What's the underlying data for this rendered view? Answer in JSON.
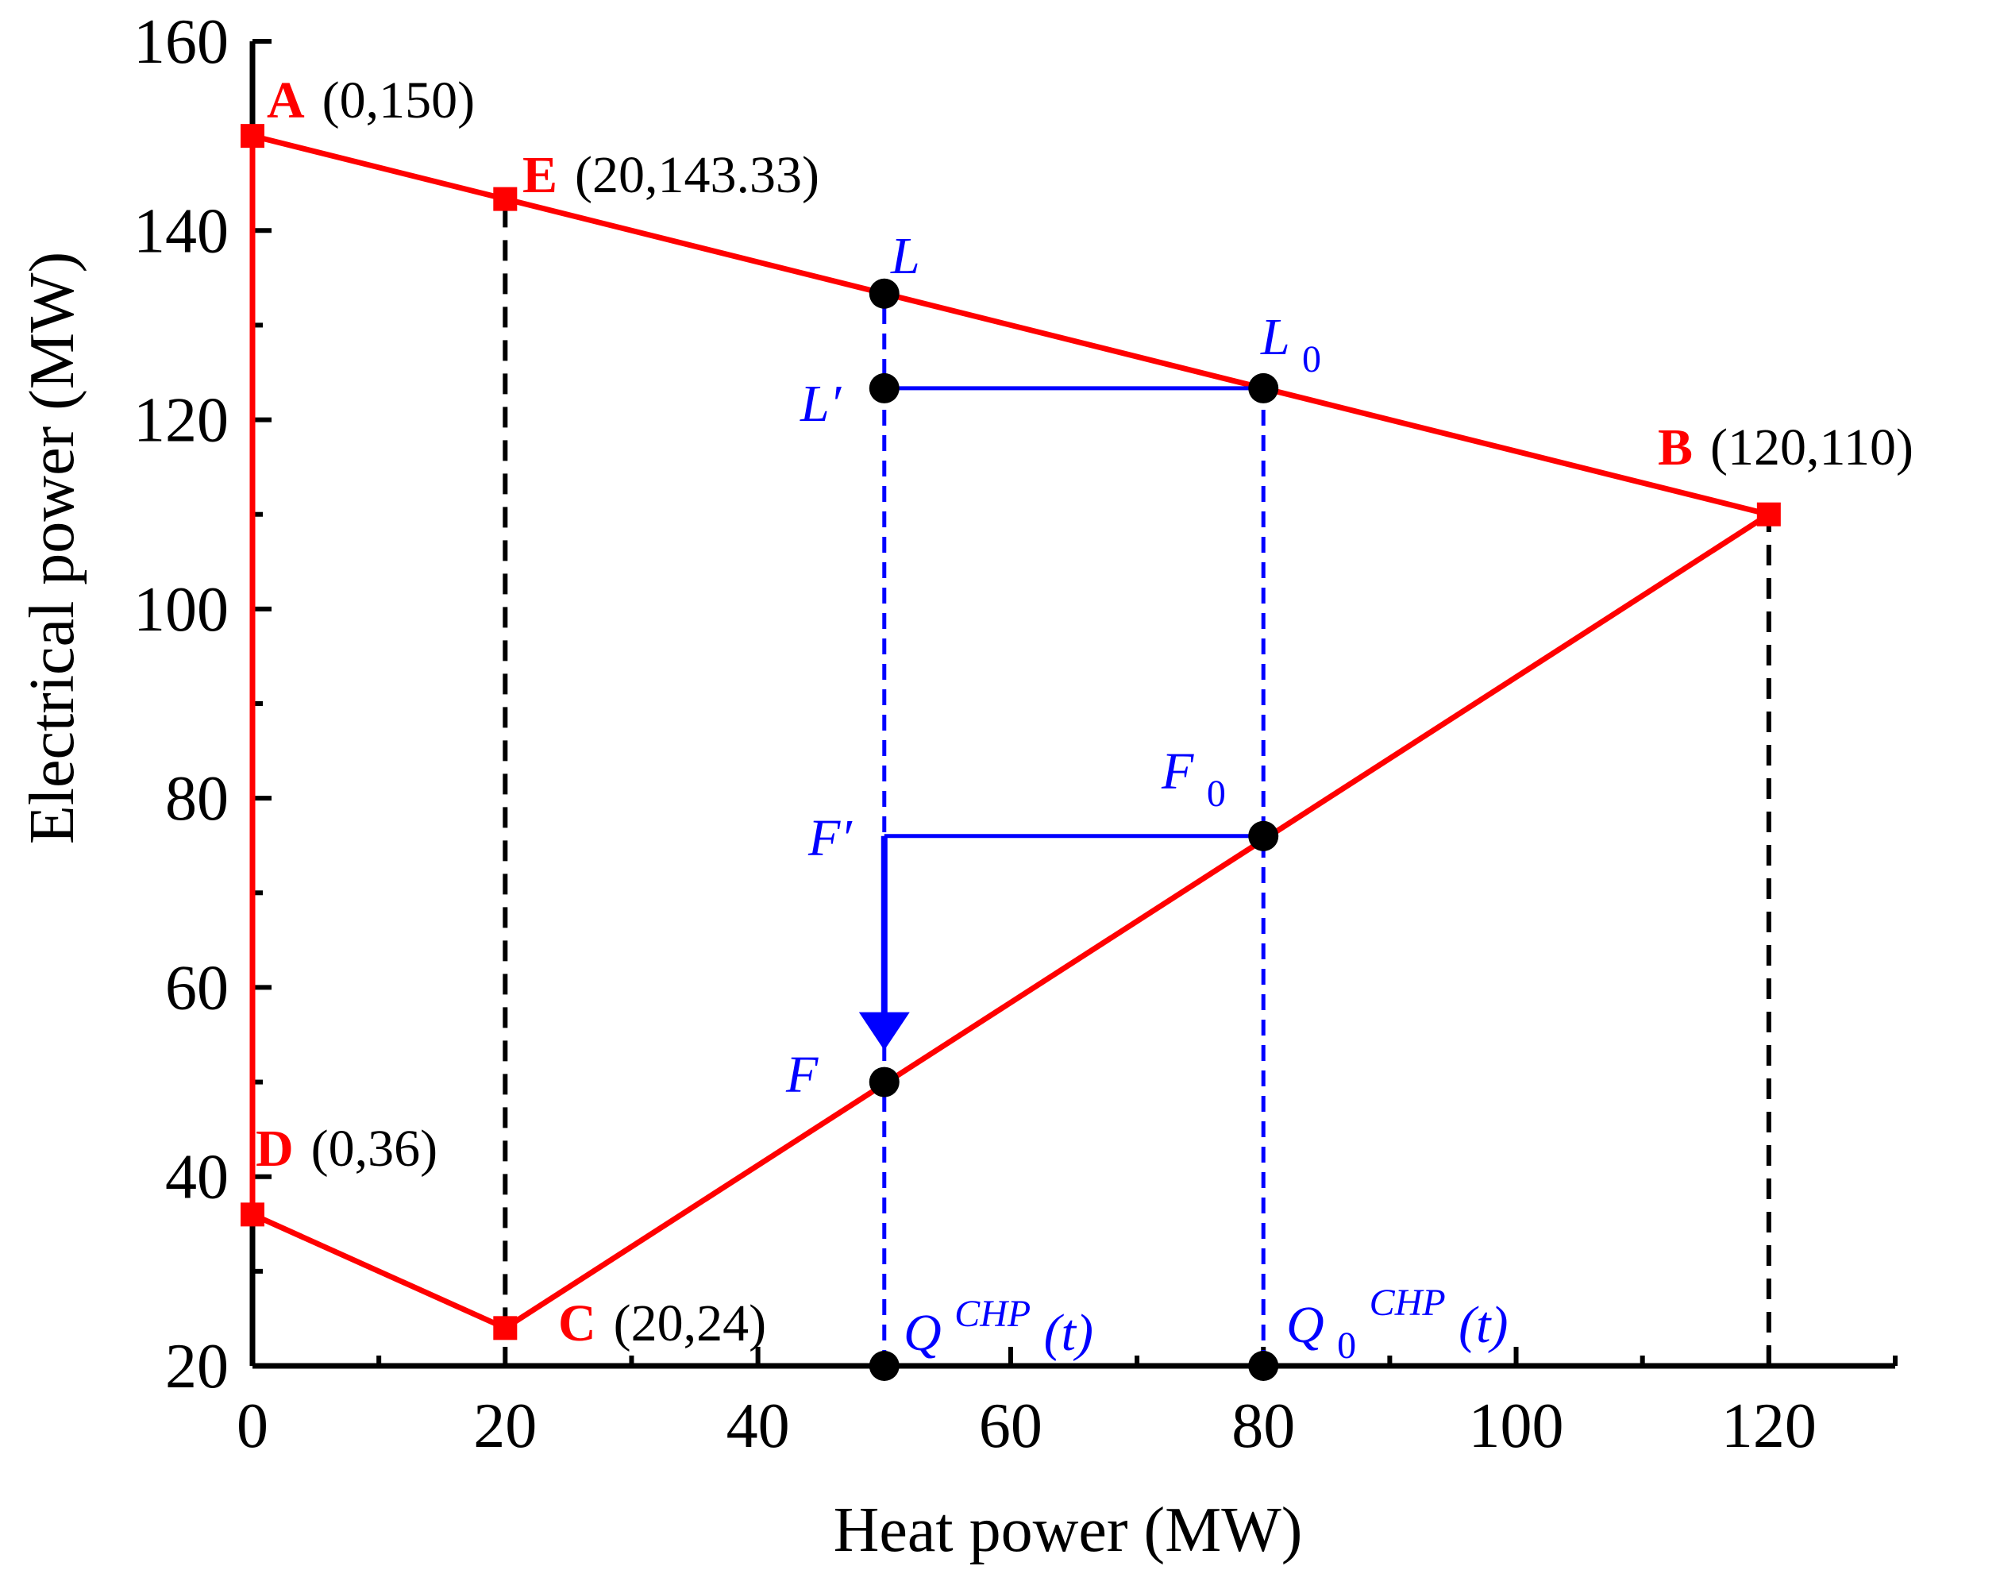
{
  "chart_data": {
    "type": "line",
    "xlabel": "Heat power (MW)",
    "ylabel": "Electrical power (MW)",
    "xlim": [
      0,
      130
    ],
    "ylim": [
      20,
      160
    ],
    "x_ticks": [
      0,
      20,
      40,
      60,
      80,
      100,
      120
    ],
    "y_ticks": [
      20,
      40,
      60,
      80,
      100,
      120,
      140,
      160
    ],
    "x_ticks_minor": [
      10,
      30,
      50,
      70,
      90,
      110,
      130
    ],
    "y_ticks_minor": [
      30,
      50,
      70,
      90,
      110,
      130,
      150
    ],
    "colors": {
      "region": "#ff0000",
      "operating": "#0000ff",
      "guide": "#000000",
      "axis": "#000000",
      "marker": "#000000"
    },
    "feasible_region": [
      {
        "x": 0,
        "y": 150
      },
      {
        "x": 120,
        "y": 110
      },
      {
        "x": 20,
        "y": 24
      },
      {
        "x": 0,
        "y": 36
      },
      {
        "x": 0,
        "y": 150
      }
    ],
    "vertices": [
      {
        "name": "A",
        "x": 0,
        "y": 150,
        "coord_text": "(0,150)"
      },
      {
        "name": "E",
        "x": 20,
        "y": 143.33,
        "coord_text": "(20,143.33)"
      },
      {
        "name": "B",
        "x": 120,
        "y": 110,
        "coord_text": "(120,110)"
      },
      {
        "name": "D",
        "x": 0,
        "y": 36,
        "coord_text": "(0,36)"
      },
      {
        "name": "C",
        "x": 20,
        "y": 24,
        "coord_text": "(20,24)"
      }
    ],
    "guide_lines": [
      {
        "x": 20,
        "y_from": 24,
        "y_to": 143.33
      },
      {
        "x": 120,
        "y_from": 20,
        "y_to": 110
      }
    ],
    "operating_points": [
      {
        "name": "L",
        "x": 50,
        "y": 133.33
      },
      {
        "name": "L'",
        "x": 50,
        "y": 123.33
      },
      {
        "name": "L0",
        "x": 80,
        "y": 123.33
      },
      {
        "name": "F'",
        "x": 50,
        "y": 76
      },
      {
        "name": "F0",
        "x": 80,
        "y": 76
      },
      {
        "name": "F",
        "x": 50,
        "y": 50
      },
      {
        "name": "Q",
        "x": 50,
        "y": 20
      },
      {
        "name": "Q0",
        "x": 80,
        "y": 20
      }
    ],
    "annotations": {
      "L": "L",
      "L_prime": "L′",
      "L0_base": "L",
      "L0_sub": "0",
      "F_prime": "F′",
      "F0_base": "F",
      "F0_sub": "0",
      "F": "F",
      "Q_base": "Q",
      "Q_sup": "CHP",
      "Q_tail": "(t)",
      "Q0_base": "Q",
      "Q0_sub": "0",
      "Q0_sup": "CHP",
      "Q0_tail": "(t)"
    }
  }
}
